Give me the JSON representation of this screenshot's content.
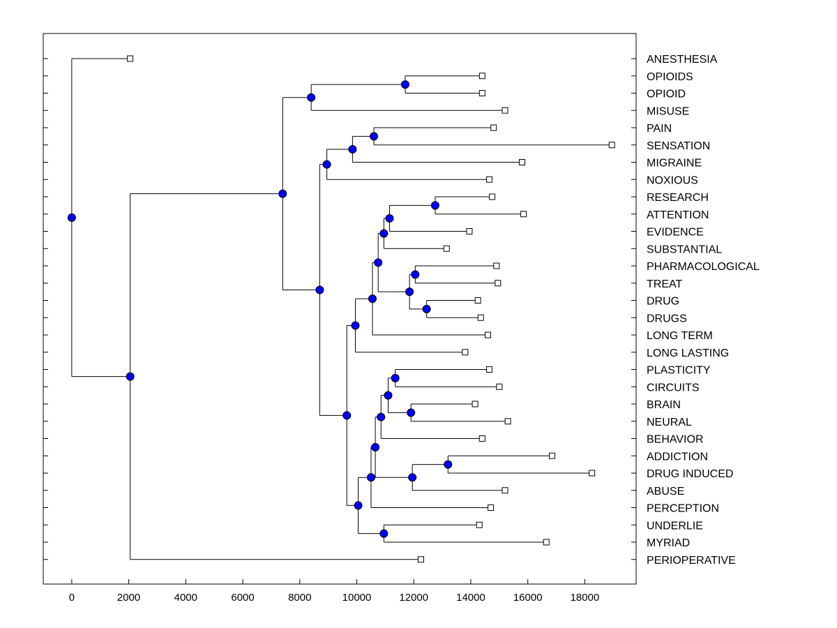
{
  "chart_data": {
    "type": "dendrogram",
    "orientation": "horizontal",
    "xlim": [
      -1000,
      19800
    ],
    "xticks": [
      0,
      2000,
      4000,
      6000,
      8000,
      10000,
      12000,
      14000,
      16000,
      18000
    ],
    "xtick_labels": [
      "0",
      "2000",
      "4000",
      "6000",
      "8000",
      "10000",
      "12000",
      "14000",
      "16000",
      "18000"
    ],
    "colors": {
      "node": "#0000ff",
      "line": "#000000",
      "leaf": "#ffffff"
    },
    "leaves": [
      {
        "label": "ANESTHESIA",
        "x": 2050
      },
      {
        "label": "OPIOIDS",
        "x": 14400
      },
      {
        "label": "OPIOID",
        "x": 14400
      },
      {
        "label": "MISUSE",
        "x": 15200
      },
      {
        "label": "PAIN",
        "x": 14800
      },
      {
        "label": "SENSATION",
        "x": 18950
      },
      {
        "label": "MIGRAINE",
        "x": 15800
      },
      {
        "label": "NOXIOUS",
        "x": 14650
      },
      {
        "label": "RESEARCH",
        "x": 14750
      },
      {
        "label": "ATTENTION",
        "x": 15850
      },
      {
        "label": "EVIDENCE",
        "x": 13950
      },
      {
        "label": "SUBSTANTIAL",
        "x": 13150
      },
      {
        "label": "PHARMACOLOGICAL",
        "x": 14900
      },
      {
        "label": "TREAT",
        "x": 14950
      },
      {
        "label": "DRUG",
        "x": 14250
      },
      {
        "label": "DRUGS",
        "x": 14350
      },
      {
        "label": "LONG TERM",
        "x": 14600
      },
      {
        "label": "LONG LASTING",
        "x": 13800
      },
      {
        "label": "PLASTICITY",
        "x": 14650
      },
      {
        "label": "CIRCUITS",
        "x": 15000
      },
      {
        "label": "BRAIN",
        "x": 14150
      },
      {
        "label": "NEURAL",
        "x": 15300
      },
      {
        "label": "BEHAVIOR",
        "x": 14400
      },
      {
        "label": "ADDICTION",
        "x": 16850
      },
      {
        "label": "DRUG INDUCED",
        "x": 18250
      },
      {
        "label": "ABUSE",
        "x": 15200
      },
      {
        "label": "PERCEPTION",
        "x": 14700
      },
      {
        "label": "UNDERLIE",
        "x": 14300
      },
      {
        "label": "MYRIAD",
        "x": 16650
      },
      {
        "label": "PERIOPERATIVE",
        "x": 12250
      }
    ],
    "nodes": [
      {
        "id": "n_opioid",
        "x": 11700,
        "children": [
          1,
          2
        ]
      },
      {
        "id": "n_opi_mis",
        "x": 8400,
        "children": [
          "n_opioid",
          3
        ]
      },
      {
        "id": "n_pain_sens",
        "x": 10600,
        "children": [
          4,
          5
        ]
      },
      {
        "id": "n_mig",
        "x": 9850,
        "children": [
          "n_pain_sens",
          6
        ]
      },
      {
        "id": "n_nox",
        "x": 8950,
        "children": [
          "n_mig",
          7
        ]
      },
      {
        "id": "n_res_att",
        "x": 12750,
        "children": [
          8,
          9
        ]
      },
      {
        "id": "n_evid",
        "x": 11150,
        "children": [
          "n_res_att",
          10
        ]
      },
      {
        "id": "n_subst",
        "x": 10950,
        "children": [
          "n_evid",
          11
        ]
      },
      {
        "id": "n_pharm_treat",
        "x": 12050,
        "children": [
          12,
          13
        ]
      },
      {
        "id": "n_drug_drugs",
        "x": 12450,
        "children": [
          14,
          15
        ]
      },
      {
        "id": "n_pt_dd",
        "x": 11850,
        "children": [
          "n_pharm_treat",
          "n_drug_drugs"
        ]
      },
      {
        "id": "n_subst_pt",
        "x": 10750,
        "children": [
          "n_subst",
          "n_pt_dd"
        ]
      },
      {
        "id": "n_longterm",
        "x": 10550,
        "children": [
          "n_subst_pt",
          16
        ]
      },
      {
        "id": "n_longlast",
        "x": 9950,
        "children": [
          "n_longterm",
          17
        ]
      },
      {
        "id": "n_plas_circ",
        "x": 11350,
        "children": [
          18,
          19
        ]
      },
      {
        "id": "n_brain_neural",
        "x": 11900,
        "children": [
          20,
          21
        ]
      },
      {
        "id": "n_pc_bn",
        "x": 11100,
        "children": [
          "n_plas_circ",
          "n_brain_neural"
        ]
      },
      {
        "id": "n_behav",
        "x": 10850,
        "children": [
          "n_pc_bn",
          22
        ]
      },
      {
        "id": "n_add_di",
        "x": 13200,
        "children": [
          23,
          24
        ]
      },
      {
        "id": "n_abuse",
        "x": 11950,
        "children": [
          "n_add_di",
          25
        ]
      },
      {
        "id": "n_beh_ab",
        "x": 10650,
        "children": [
          "n_behav",
          "n_abuse"
        ]
      },
      {
        "id": "n_percep",
        "x": 10500,
        "children": [
          "n_beh_ab",
          26
        ]
      },
      {
        "id": "n_und_myr",
        "x": 10950,
        "children": [
          27,
          28
        ]
      },
      {
        "id": "n_per_um",
        "x": 10050,
        "children": [
          "n_percep",
          "n_und_myr"
        ]
      },
      {
        "id": "n_ll_um",
        "x": 9650,
        "children": [
          "n_longlast",
          "n_per_um"
        ]
      },
      {
        "id": "n_nox_big",
        "x": 8700,
        "children": [
          "n_nox",
          "n_ll_um"
        ]
      },
      {
        "id": "n_mis_big",
        "x": 7400,
        "children": [
          "n_opi_mis",
          "n_nox_big"
        ]
      },
      {
        "id": "n_periop",
        "x": 2050,
        "children": [
          "n_mis_big",
          29
        ]
      },
      {
        "id": "n_root",
        "x": 0,
        "children": [
          0,
          "n_periop"
        ]
      }
    ]
  }
}
